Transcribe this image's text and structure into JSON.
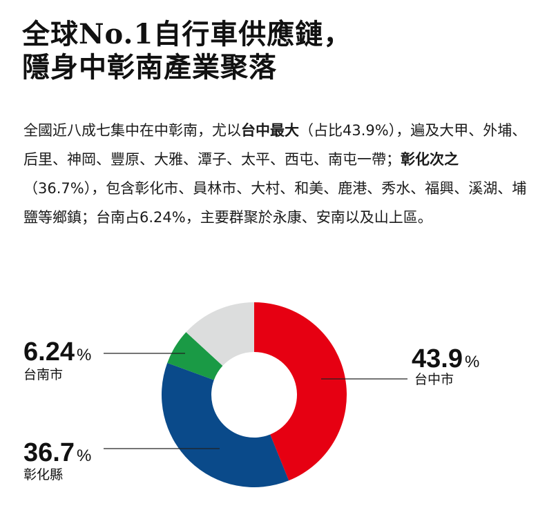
{
  "title": {
    "line1": "全球No.1自行車供應鏈，",
    "line2": "隱身中彰南產業聚落"
  },
  "paragraph": {
    "p1": "全國近八成七集中在中彰南，尤以",
    "b1": "台中最大",
    "p2": "（占比43.9%），遍及大甲、外埔、后里、神岡、豐原、大雅、潭子、太平、西屯、南屯一帶；",
    "b2": "彰化次之",
    "p3": "（36.7%），包含彰化市、員林市、大村、和美、鹿港、秀水、福興、溪湖、埔鹽等鄉鎮；台南占6.24%，主要群聚於永康、安南以及山上區。"
  },
  "colors": {
    "taichung": "#e60012",
    "changhua": "#0a4a8a",
    "tainan": "#1a9a45",
    "other": "#dcdddd",
    "leader": "#222222"
  },
  "chart_data": {
    "type": "pie",
    "donut": true,
    "start_angle_deg": 0,
    "direction": "clockwise",
    "slices": [
      {
        "label": "台中市",
        "value": 43.9,
        "value_text": "43.9",
        "unit": "%",
        "color": "#e60012",
        "labeled": true
      },
      {
        "label": "彰化縣",
        "value": 36.7,
        "value_text": "36.7",
        "unit": "%",
        "color": "#0a4a8a",
        "labeled": true
      },
      {
        "label": "台南市",
        "value": 6.24,
        "value_text": "6.24",
        "unit": "%",
        "color": "#1a9a45",
        "labeled": true
      },
      {
        "label": "",
        "value": 13.16,
        "value_text": "",
        "unit": "",
        "color": "#dcdddd",
        "labeled": false
      }
    ]
  }
}
